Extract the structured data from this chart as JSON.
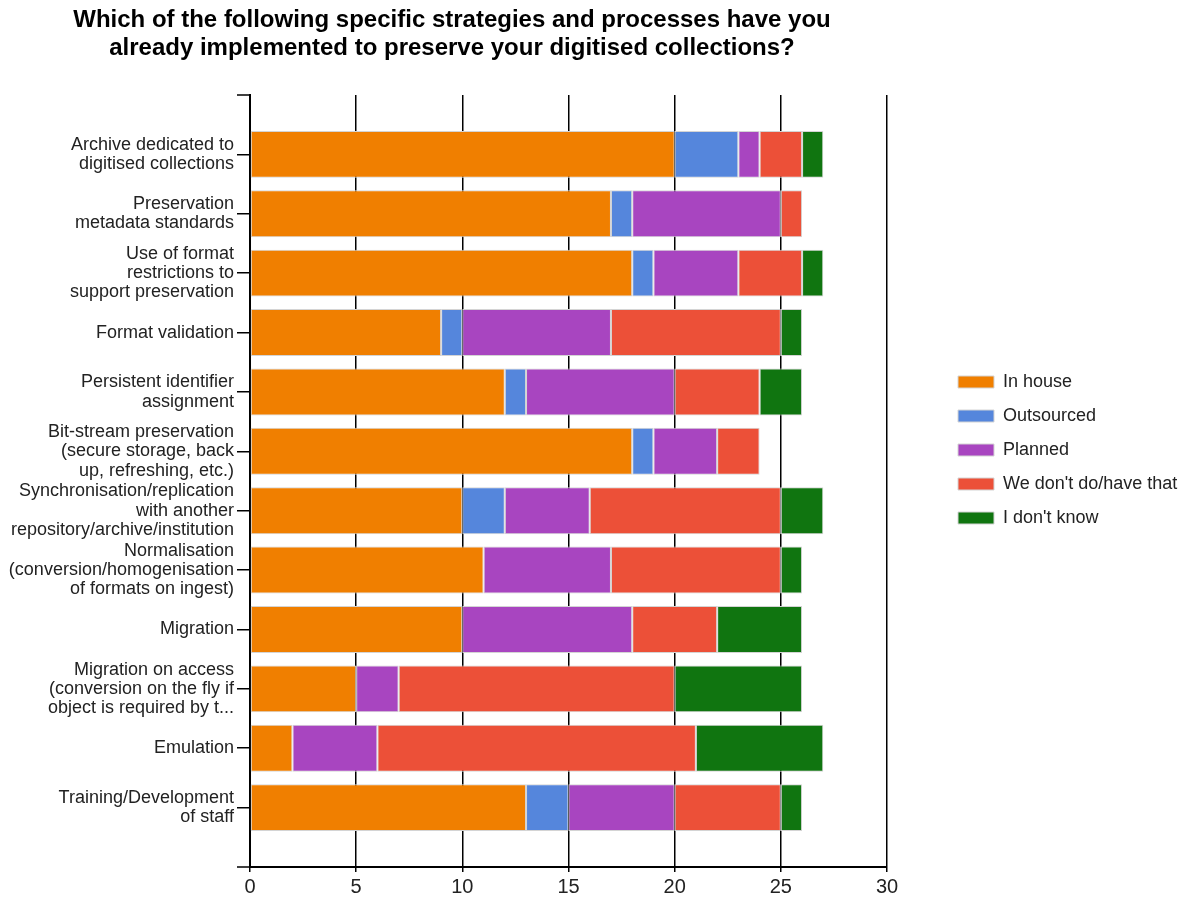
{
  "chart_data": {
    "type": "bar",
    "orientation": "horizontal",
    "stacked": true,
    "title": "Which of the following specific strategies and processes have you already implemented to preserve your digitised collections?",
    "categories": [
      "Archive dedicated to digitised collections",
      "Preservation metadata standards",
      "Use of format restrictions to support preservation",
      "Format validation",
      "Persistent identifier assignment",
      "Bit-stream preservation (secure storage, back up, refreshing, etc.)",
      "Synchronisation/replication with another repository/archive/institution",
      "Normalisation (conversion/homogenisation of formats on ingest)",
      "Migration",
      "Migration on access (conversion on the fly if object is required by t...",
      "Emulation",
      "Training/Development of staff"
    ],
    "series": [
      {
        "name": "In house",
        "color": "#f07f00",
        "values": [
          20,
          17,
          18,
          9,
          12,
          18,
          10,
          11,
          10,
          5,
          2,
          13
        ]
      },
      {
        "name": "Outsourced",
        "color": "#5586dc",
        "values": [
          3,
          1,
          1,
          1,
          1,
          1,
          2,
          0,
          0,
          0,
          0,
          2
        ]
      },
      {
        "name": "Planned",
        "color": "#a845c0",
        "values": [
          1,
          7,
          4,
          7,
          7,
          3,
          4,
          6,
          8,
          2,
          4,
          5
        ]
      },
      {
        "name": "We don't do/have that",
        "color": "#ec5038",
        "values": [
          2,
          1,
          3,
          8,
          4,
          2,
          9,
          8,
          4,
          13,
          15,
          5
        ]
      },
      {
        "name": "I don't know",
        "color": "#107510",
        "values": [
          1,
          0,
          1,
          1,
          2,
          0,
          2,
          1,
          4,
          6,
          6,
          1
        ]
      }
    ],
    "xlim": [
      0,
      30
    ],
    "xticks": [
      0,
      5,
      10,
      15,
      20,
      25,
      30
    ],
    "grid": "x",
    "legend": "right"
  }
}
